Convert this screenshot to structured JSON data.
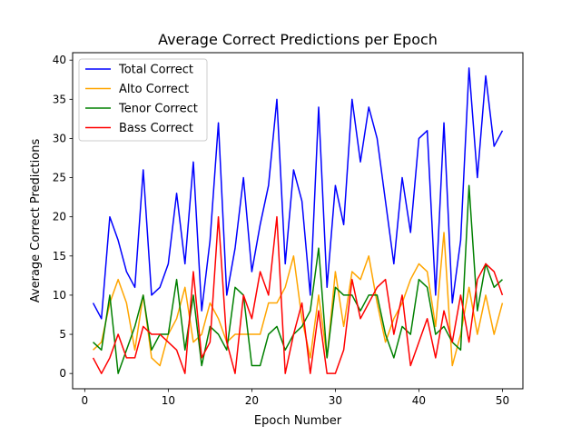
{
  "chart_data": {
    "type": "line",
    "title": "Average Correct Predictions per Epoch",
    "xlabel": "Epoch Number",
    "ylabel": "Average Correct Predictions",
    "xlim": [
      -1.45,
      52.45
    ],
    "ylim": [
      -1.95,
      40.95
    ],
    "xticks": [
      0,
      10,
      20,
      30,
      40,
      50
    ],
    "yticks": [
      0,
      5,
      10,
      15,
      20,
      25,
      30,
      35,
      40
    ],
    "grid": false,
    "legend_position": "top-left",
    "x": [
      1,
      2,
      3,
      4,
      5,
      6,
      7,
      8,
      9,
      10,
      11,
      12,
      13,
      14,
      15,
      16,
      17,
      18,
      19,
      20,
      21,
      22,
      23,
      24,
      25,
      26,
      27,
      28,
      29,
      30,
      31,
      32,
      33,
      34,
      35,
      36,
      37,
      38,
      39,
      40,
      41,
      42,
      43,
      44,
      45,
      46,
      47,
      48,
      49,
      50
    ],
    "series": [
      {
        "name": "Total Correct",
        "color": "#0000ff",
        "values": [
          9,
          7,
          20,
          17,
          13,
          11,
          26,
          10,
          11,
          14,
          23,
          14,
          27,
          8,
          17,
          32,
          10,
          16,
          25,
          13,
          19,
          24,
          35,
          14,
          26,
          22,
          10,
          34,
          11,
          24,
          19,
          35,
          27,
          34,
          30,
          22,
          14,
          25,
          18,
          30,
          31,
          10,
          32,
          9,
          17,
          39,
          25,
          38,
          29,
          31
        ]
      },
      {
        "name": "Alto Correct",
        "color": "#ffa500",
        "values": [
          3,
          4,
          9,
          12,
          9,
          3,
          10,
          2,
          1,
          5,
          7,
          11,
          4,
          5,
          9,
          7,
          4,
          5,
          5,
          5,
          5,
          9,
          9,
          11,
          15,
          7,
          2,
          10,
          2,
          13,
          6,
          13,
          12,
          15,
          9,
          4,
          7,
          9,
          12,
          14,
          13,
          6,
          18,
          1,
          5,
          11,
          5,
          10,
          5,
          9
        ]
      },
      {
        "name": "Tenor Correct",
        "color": "#008000",
        "values": [
          4,
          3,
          10,
          0,
          3,
          6,
          10,
          3,
          5,
          5,
          12,
          3,
          10,
          1,
          6,
          5,
          3,
          11,
          10,
          1,
          1,
          5,
          6,
          3,
          5,
          6,
          8,
          16,
          2,
          11,
          10,
          10,
          8,
          10,
          10,
          5,
          2,
          6,
          5,
          12,
          11,
          5,
          6,
          4,
          3,
          24,
          8,
          14,
          11,
          12
        ]
      },
      {
        "name": "Bass Correct",
        "color": "#ff0000",
        "values": [
          2,
          0,
          2,
          5,
          2,
          2,
          6,
          5,
          5,
          4,
          3,
          0,
          13,
          2,
          4,
          20,
          4,
          0,
          10,
          7,
          13,
          10,
          20,
          0,
          5,
          9,
          0,
          8,
          0,
          0,
          3,
          12,
          7,
          9,
          11,
          12,
          5,
          10,
          1,
          4,
          7,
          2,
          8,
          4,
          10,
          4,
          12,
          14,
          13,
          10
        ]
      }
    ]
  }
}
